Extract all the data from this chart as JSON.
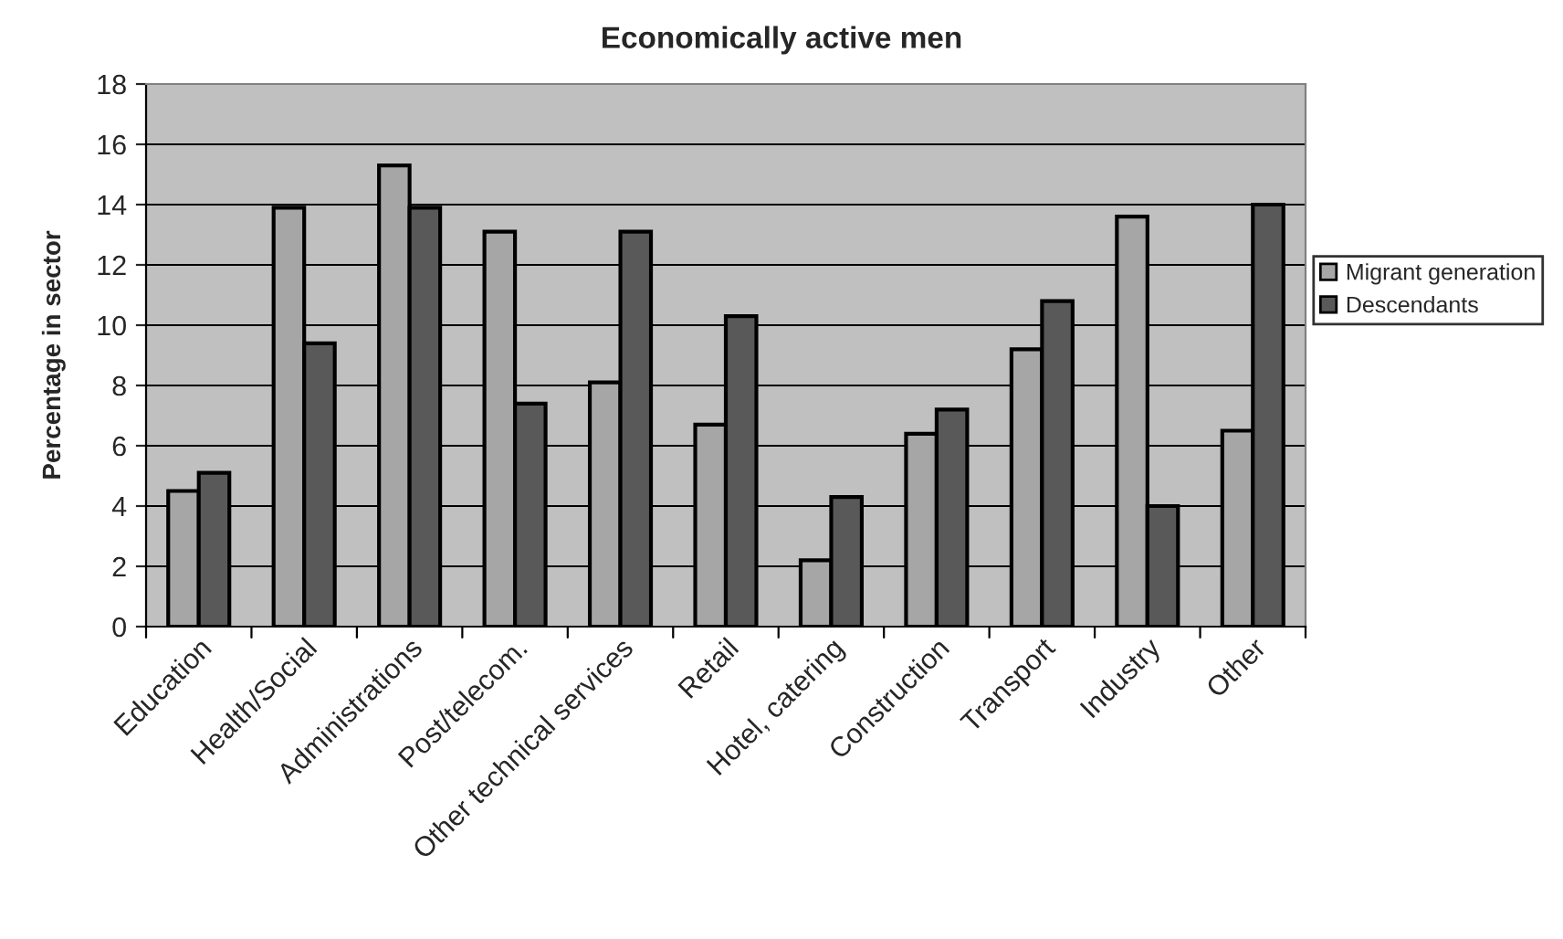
{
  "chart_data": {
    "type": "bar",
    "title": "Economically active men",
    "ylabel": "Percentage in sector",
    "categories": [
      "Education",
      "Health/Social",
      "Administrations",
      "Post/telecom.",
      "Other technical services",
      "Retail",
      "Hotel, catering",
      "Construction",
      "Transport",
      "Industry",
      "Other"
    ],
    "series": [
      {
        "name": "Migrant generation",
        "color": "#a6a6a6",
        "values": [
          4.5,
          13.9,
          15.3,
          13.1,
          8.1,
          6.7,
          2.2,
          6.4,
          9.2,
          13.6,
          6.5
        ]
      },
      {
        "name": "Descendants",
        "color": "#595959",
        "values": [
          5.1,
          9.4,
          13.9,
          7.4,
          13.1,
          10.3,
          4.3,
          7.2,
          10.8,
          4.0,
          14.0
        ]
      }
    ],
    "ylim": [
      0,
      18
    ],
    "yticks": [
      0,
      2,
      4,
      6,
      8,
      10,
      12,
      14,
      16,
      18
    ],
    "grid": "y",
    "legend": "right"
  }
}
